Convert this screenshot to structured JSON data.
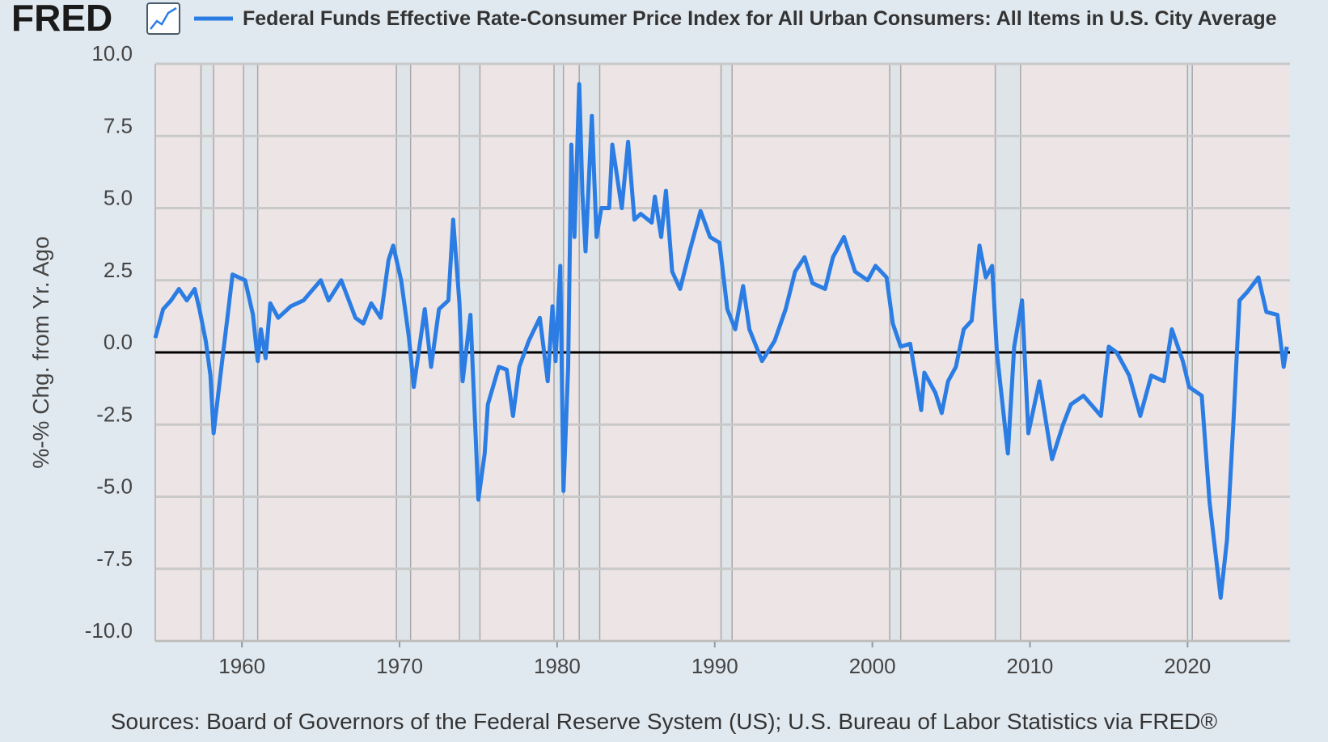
{
  "chart_data": {
    "type": "line",
    "logo": "FRED",
    "y_label": "%-% Chg. from Yr. Ago",
    "source": "Sources: Board of Governors of the Federal Reserve System (US); U.S. Bureau of Labor Statistics via FRED®",
    "xlim": [
      1954.5,
      2026.5
    ],
    "xticks": [
      1960,
      1970,
      1980,
      1990,
      2000,
      2010,
      2020
    ],
    "ylim": [
      -10,
      10
    ],
    "yticks": [
      {
        "value": -10,
        "label": "-10.0"
      },
      -7.5,
      {
        "value": -5,
        "label": "-5.0"
      },
      -2.5,
      {
        "value": 0,
        "label": "0.0"
      },
      2.5,
      {
        "value": 5,
        "label": "5.0"
      },
      7.5,
      {
        "value": 10,
        "label": "10.0"
      }
    ],
    "grid": true,
    "recessions": [
      [
        1957.4,
        1958.2
      ],
      [
        1960.1,
        1961.0
      ],
      [
        1969.8,
        1970.7
      ],
      [
        1973.8,
        1975.1
      ],
      [
        1979.8,
        1980.4
      ],
      [
        1981.4,
        1982.7
      ],
      [
        1990.4,
        1991.1
      ],
      [
        2001.1,
        2001.8
      ],
      [
        2007.8,
        2009.4
      ],
      [
        2020.0,
        2020.3
      ]
    ],
    "series": [
      {
        "name": "Federal Funds Effective Rate-Consumer Price Index for All Urban Consumers: All Items in U.S. City Average",
        "color": "#2b7de4",
        "x": [
          1954.5,
          1955,
          1955.5,
          1956,
          1956.5,
          1957,
          1957.3,
          1957.7,
          1958,
          1958.2,
          1958.7,
          1959.1,
          1959.4,
          1960.2,
          1960.7,
          1961.0,
          1961.2,
          1961.5,
          1961.8,
          1962.3,
          1963.1,
          1963.9,
          1965,
          1965.5,
          1966.3,
          1967.2,
          1967.7,
          1968.2,
          1968.8,
          1969.3,
          1969.6,
          1970.1,
          1970.6,
          1970.9,
          1971.6,
          1972,
          1972.5,
          1973.1,
          1973.4,
          1973.8,
          1974,
          1974.5,
          1975,
          1975.4,
          1975.6,
          1976.3,
          1976.8,
          1977.2,
          1977.6,
          1978.2,
          1978.9,
          1979.4,
          1979.7,
          1979.9,
          1980.2,
          1980.4,
          1980.7,
          1980.9,
          1981.1,
          1981.4,
          1981.6,
          1981.8,
          1982.2,
          1982.5,
          1982.8,
          1983.3,
          1983.5,
          1984.1,
          1984.5,
          1984.9,
          1985.3,
          1986,
          1986.2,
          1986.6,
          1986.9,
          1987.3,
          1987.8,
          1988.4,
          1989.1,
          1989.7,
          1990.3,
          1990.8,
          1991.3,
          1991.8,
          1992.2,
          1993,
          1993.8,
          1994.5,
          1995.1,
          1995.7,
          1996.2,
          1997,
          1997.5,
          1998.2,
          1998.9,
          1999.7,
          2000.2,
          2000.9,
          2001.3,
          2001.8,
          2002.4,
          2003.1,
          2003.3,
          2004,
          2004.4,
          2004.8,
          2005.3,
          2005.8,
          2006.3,
          2006.8,
          2007.2,
          2007.6,
          2007.9,
          2008.2,
          2008.6,
          2009.0,
          2009.5,
          2009.9,
          2010.6,
          2011.4,
          2012.1,
          2012.6,
          2013.4,
          2014.5,
          2015,
          2015.5,
          2016.3,
          2017,
          2017.7,
          2018.5,
          2019,
          2019.7,
          2020.1,
          2020.9,
          2021.4,
          2022.1,
          2022.5,
          2022.9,
          2023.3,
          2023.8,
          2024.5,
          2025,
          2025.7,
          2026.1,
          2026.3
        ],
        "values": [
          0.5,
          1.5,
          1.8,
          2.2,
          1.8,
          2.2,
          1.5,
          0.4,
          -0.8,
          -2.8,
          -0.5,
          1.3,
          2.7,
          2.5,
          1.3,
          -0.3,
          0.8,
          -0.2,
          1.7,
          1.2,
          1.6,
          1.8,
          2.5,
          1.8,
          2.5,
          1.2,
          1.0,
          1.7,
          1.2,
          3.2,
          3.7,
          2.5,
          0.5,
          -1.2,
          1.5,
          -0.5,
          1.5,
          1.8,
          4.6,
          1.7,
          -1.0,
          1.3,
          -5.1,
          -3.5,
          -1.8,
          -0.5,
          -0.6,
          -2.2,
          -0.5,
          0.4,
          1.2,
          -1.0,
          1.6,
          -0.3,
          3.0,
          -4.8,
          -0.5,
          7.2,
          4.0,
          9.3,
          5.5,
          3.5,
          8.2,
          4.0,
          5.0,
          5.0,
          7.2,
          5.0,
          7.3,
          4.6,
          4.8,
          4.5,
          5.4,
          4.0,
          5.6,
          2.8,
          2.2,
          3.5,
          4.9,
          4.0,
          3.8,
          1.5,
          0.8,
          2.3,
          0.8,
          -0.3,
          0.4,
          1.5,
          2.8,
          3.3,
          2.4,
          2.2,
          3.3,
          4.0,
          2.8,
          2.5,
          3.0,
          2.6,
          1.0,
          0.2,
          0.3,
          -2.0,
          -0.7,
          -1.4,
          -2.1,
          -1.0,
          -0.5,
          0.8,
          1.1,
          3.7,
          2.6,
          3.0,
          0.0,
          -1.5,
          -3.5,
          0.2,
          1.8,
          -2.8,
          -1.0,
          -3.7,
          -2.5,
          -1.8,
          -1.5,
          -2.2,
          0.2,
          0.0,
          -0.8,
          -2.2,
          -0.8,
          -1.0,
          0.8,
          -0.3,
          -1.2,
          -1.5,
          -5.2,
          -8.5,
          -6.5,
          -2.5,
          1.8,
          2.1,
          2.6,
          1.4,
          1.3,
          -0.5,
          0.2
        ]
      }
    ]
  }
}
